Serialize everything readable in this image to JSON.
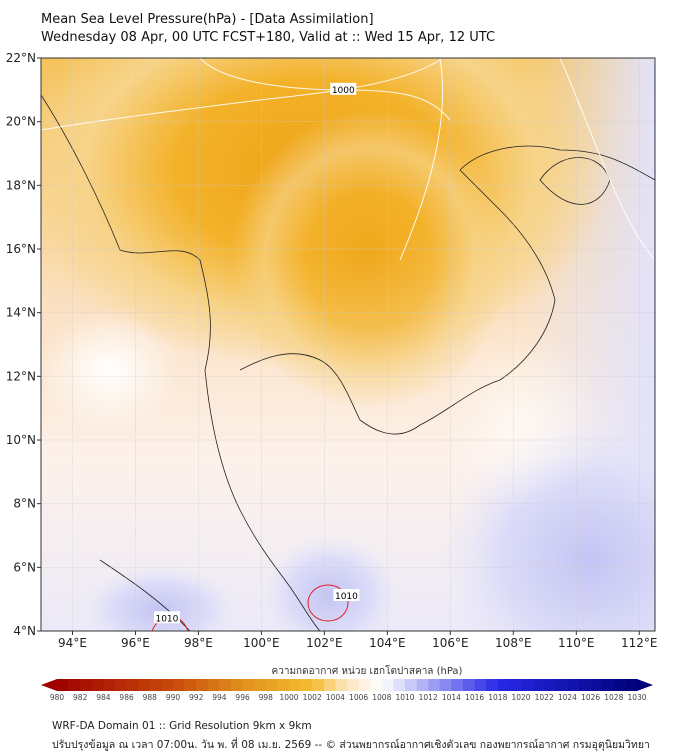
{
  "header": {
    "title": "Mean Sea Level Pressure(hPa) - [Data Assimilation]",
    "subtitle": "Wednesday 08 Apr, 00 UTC FCST+180, Valid at :: Wed 15 Apr, 12 UTC"
  },
  "chart_data": {
    "type": "heatmap",
    "title": "Mean Sea Level Pressure(hPa)",
    "x_axis": {
      "range": [
        93,
        112.5
      ],
      "ticks": [
        94,
        96,
        98,
        100,
        102,
        104,
        106,
        108,
        110,
        112
      ],
      "tick_labels": [
        "94°E",
        "96°E",
        "98°E",
        "100°E",
        "102°E",
        "104°E",
        "106°E",
        "108°E",
        "110°E",
        "112°E"
      ]
    },
    "y_axis": {
      "range": [
        4,
        22
      ],
      "ticks": [
        4,
        6,
        8,
        10,
        12,
        14,
        16,
        18,
        20,
        22
      ],
      "tick_labels": [
        "4°N",
        "6°N",
        "8°N",
        "10°N",
        "12°N",
        "14°N",
        "16°N",
        "18°N",
        "20°N",
        "22°N"
      ]
    },
    "contour_labels": [
      {
        "value": "1000",
        "lon": 102.6,
        "lat": 21.0
      },
      {
        "value": "1010",
        "lon": 97.0,
        "lat": 4.4
      },
      {
        "value": "1010",
        "lon": 102.7,
        "lat": 5.1
      }
    ],
    "colorbar": {
      "label": "ความกดอากาศ หน่วย เฮกโตปาสคาล (hPa)",
      "min": 980,
      "max": 1030,
      "step": 1,
      "tick_labels": [
        "980",
        "982",
        "984",
        "986",
        "988",
        "990",
        "992",
        "994",
        "996",
        "998",
        "1000",
        "1002",
        "1004",
        "1006",
        "1008",
        "1010",
        "1012",
        "1014",
        "1016",
        "1018",
        "1020",
        "1022",
        "1024",
        "1026",
        "1028",
        "1030"
      ],
      "color_stops": [
        [
          980,
          "#9e0000"
        ],
        [
          990,
          "#c84a0a"
        ],
        [
          996,
          "#e0901c"
        ],
        [
          1002,
          "#f5bc30"
        ],
        [
          1005,
          "#fbe6c0"
        ],
        [
          1008,
          "#ffffff"
        ],
        [
          1012,
          "#a8a8f5"
        ],
        [
          1018,
          "#2828e6"
        ],
        [
          1030,
          "#00007a"
        ]
      ]
    }
  },
  "footer": {
    "line1": "WRF-DA Domain 01 :: Grid Resolution 9km x 9km",
    "line2": "ปรับปรุงข้อมูล ณ เวลา 07:00น. วัน พ. ที่ 08 เม.ย. 2569 -- © ส่วนพยากรณ์อากาศเชิงตัวเลข กองพยากรณ์อากาศ กรมอุตุนิยมวิทยา"
  }
}
